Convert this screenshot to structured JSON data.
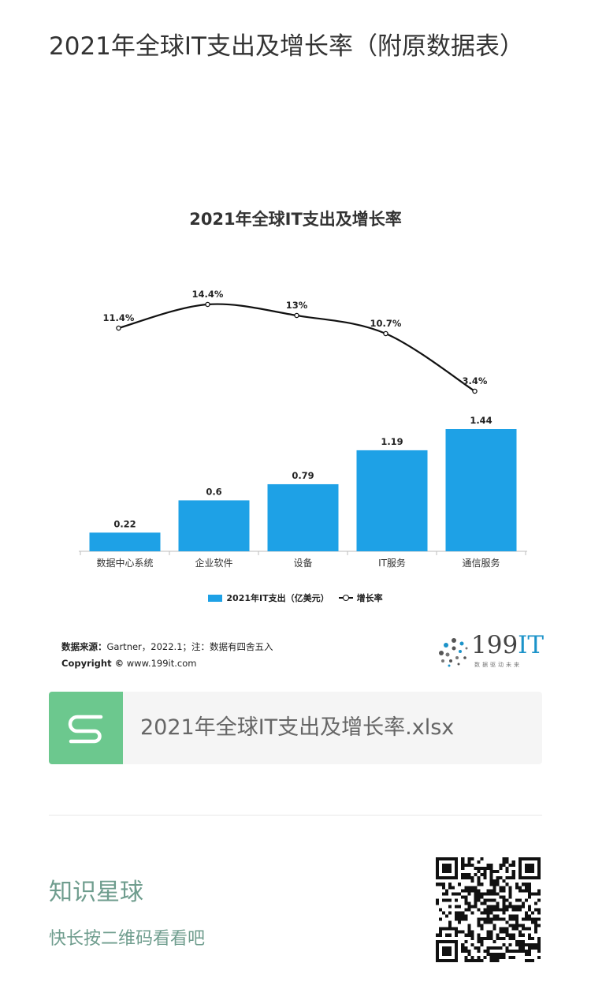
{
  "article": {
    "title": "2021年全球IT支出及增长率（附原数据表）"
  },
  "chart_data": {
    "type": "bar",
    "title": "2021年全球IT支出及增长率",
    "categories": [
      "数据中心系统",
      "企业软件",
      "设备",
      "IT服务",
      "通信服务"
    ],
    "series": [
      {
        "name": "2021年IT支出（亿美元）",
        "type": "bar",
        "values": [
          0.22,
          0.6,
          0.79,
          1.19,
          1.44
        ],
        "labels": [
          "0.22",
          "0.6",
          "0.79",
          "1.19",
          "1.44"
        ],
        "color": "#1ea1e6"
      },
      {
        "name": "增长率",
        "type": "line",
        "values": [
          11.4,
          14.4,
          13,
          10.7,
          3.4
        ],
        "labels": [
          "11.4%",
          "14.4%",
          "13%",
          "10.7%",
          "3.4%"
        ],
        "color": "#111111"
      }
    ],
    "legend": "bottom",
    "grid": false
  },
  "chart_source": {
    "source_label": "数据来源：",
    "source_text": "Gartner，2022.1；注：数据有四舍五入",
    "copyright_label": "Copyright ©",
    "copyright_text": "www.199it.com"
  },
  "brand": {
    "name_prefix": "199",
    "name_accent": "IT",
    "slogan": "数据驱动未来",
    "accent_color": "#1c93c9"
  },
  "attachment": {
    "file_name": "2021年全球IT支出及增长率.xlsx",
    "icon": "spreadsheet-s-icon",
    "icon_color": "#6cc88e"
  },
  "footer": {
    "title": "知识星球",
    "subtitle": "快长按二维码看看吧",
    "qr_icon": "qr-code-icon"
  }
}
